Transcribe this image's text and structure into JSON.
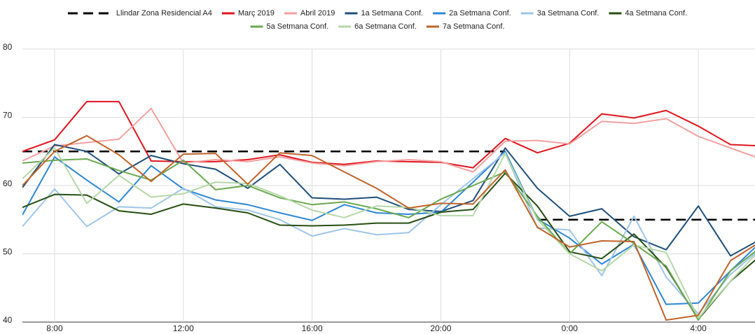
{
  "chart_data": {
    "type": "line",
    "x": [
      7,
      8,
      9,
      10,
      11,
      12,
      13,
      14,
      15,
      16,
      17,
      18,
      19,
      20,
      21,
      22,
      23,
      24,
      25,
      26,
      27,
      28,
      29,
      30
    ],
    "xlim": [
      7,
      29.76
    ],
    "xticks": [
      {
        "value": 8,
        "label": "8:00"
      },
      {
        "value": 12,
        "label": "12:00"
      },
      {
        "value": 16,
        "label": "16:00"
      },
      {
        "value": 20,
        "label": "20:00"
      },
      {
        "value": 24,
        "label": "0:00"
      },
      {
        "value": 28,
        "label": "4:00"
      }
    ],
    "ylim": [
      40,
      80
    ],
    "yticks": [
      40,
      50,
      60,
      70,
      80
    ],
    "grid": true,
    "series": [
      {
        "name": "Llindar Zona Residencial A4",
        "color": "#000000",
        "dashed": true,
        "x": [
          7,
          22,
          22.5,
          23,
          30
        ],
        "values": [
          65,
          65,
          null,
          55,
          55
        ]
      },
      {
        "name": "Març 2019",
        "color": "#e0161f",
        "values": [
          65,
          66.7,
          72.3,
          72.3,
          63.6,
          63.5,
          63.5,
          63.8,
          64.5,
          63.4,
          63.1,
          63.6,
          63.5,
          63.4,
          62.6,
          66.9,
          64.8,
          66.2,
          70.5,
          69.9,
          71,
          68.7,
          66,
          65.8
        ]
      },
      {
        "name": "Abril 2019",
        "color": "#f4a0a0",
        "values": [
          63.6,
          65.8,
          66.3,
          66.8,
          71.3,
          63.3,
          63.8,
          63.5,
          64.2,
          63.3,
          62.9,
          63.5,
          63.8,
          63.5,
          62,
          66.5,
          66.6,
          66.1,
          69.4,
          69.1,
          69.8,
          67.2,
          65.5,
          63.8
        ]
      },
      {
        "name": "1a Setmana Conf.",
        "color": "#1f4e79",
        "values": [
          59.7,
          66,
          65,
          61.7,
          64.4,
          63.2,
          62.4,
          59.6,
          63.1,
          58.2,
          58,
          58.3,
          56.5,
          56.2,
          57.8,
          65.5,
          59.6,
          55.5,
          56.6,
          52.5,
          50.6,
          57,
          49.7,
          52.3
        ]
      },
      {
        "name": "2a Setmana Conf.",
        "color": "#2e86d4",
        "values": [
          55.7,
          64.2,
          60.8,
          57.6,
          62.9,
          59.5,
          57.9,
          57.2,
          56,
          54.9,
          57.2,
          56,
          55.8,
          56.1,
          60.5,
          65,
          55.1,
          52.3,
          48.5,
          51.4,
          42.6,
          42.8,
          47.5,
          52
        ]
      },
      {
        "name": "3a Setmana Conf.",
        "color": "#9fc5e8",
        "values": [
          54,
          59.5,
          54,
          56.9,
          56.7,
          59.6,
          56.9,
          56.4,
          55,
          52.6,
          53.7,
          52.8,
          53.1,
          57.2,
          61,
          64.8,
          53.8,
          53.5,
          46.8,
          55.5,
          46.6,
          41.2,
          47,
          51
        ]
      },
      {
        "name": "4a Setmana Conf.",
        "color": "#274e13",
        "values": [
          56.8,
          58.7,
          58.6,
          56.3,
          55.8,
          57.3,
          56.7,
          56,
          54.2,
          54.1,
          54.2,
          54.5,
          54.5,
          56.1,
          56.5,
          61.8,
          57,
          50.3,
          49.3,
          52.9,
          48,
          40.4,
          46,
          50
        ]
      },
      {
        "name": "5a Setmana Conf.",
        "color": "#6aa84f",
        "values": [
          63.3,
          63.7,
          63.9,
          62.2,
          60.8,
          63.7,
          59.4,
          60,
          58.2,
          57.2,
          57.6,
          56.6,
          55.3,
          58,
          60,
          62,
          55.5,
          50,
          54.7,
          51.5,
          48.2,
          40.3,
          47.5,
          51.2
        ]
      },
      {
        "name": "6a Setmana Conf.",
        "color": "#b6d7a8",
        "values": [
          61,
          65.5,
          57.4,
          61.5,
          58.3,
          58.8,
          60.5,
          60.3,
          58.5,
          56.4,
          55.3,
          57,
          56.8,
          55.6,
          55.6,
          64.7,
          55,
          50,
          47.5,
          51.3,
          50.2,
          40.6,
          46,
          51
        ]
      },
      {
        "name": "7a Setmana Conf.",
        "color": "#c0632a",
        "values": [
          60,
          65,
          67.3,
          64.5,
          60.6,
          64.6,
          64.7,
          60.2,
          64.8,
          64.4,
          62,
          59.6,
          56.7,
          57.4,
          57.3,
          62.3,
          53.9,
          51,
          51.9,
          51.8,
          40.3,
          41,
          49,
          52
        ]
      }
    ]
  }
}
